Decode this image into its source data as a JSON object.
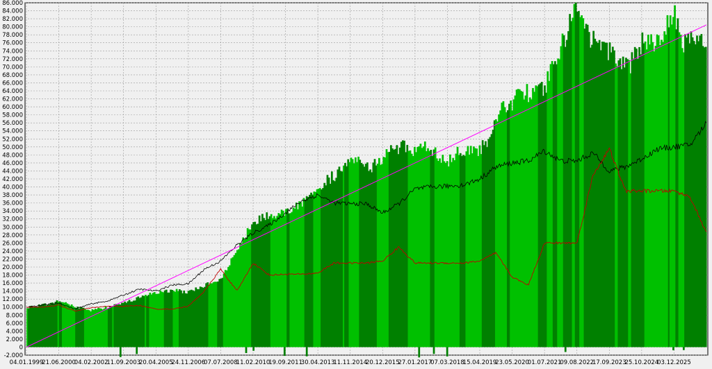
{
  "chart_data": {
    "type": "area",
    "title": "",
    "xlabel": "",
    "ylabel": "",
    "ylim": [
      -2000,
      86000
    ],
    "grid": true,
    "legend": "none",
    "y_ticks": [
      -2000,
      0,
      2000,
      4000,
      6000,
      8000,
      10000,
      12000,
      14000,
      16000,
      18000,
      20000,
      22000,
      24000,
      26000,
      28000,
      30000,
      32000,
      34000,
      36000,
      38000,
      40000,
      42000,
      44000,
      46000,
      48000,
      50000,
      52000,
      54000,
      56000,
      58000,
      60000,
      62000,
      64000,
      66000,
      68000,
      70000,
      72000,
      74000,
      76000,
      78000,
      80000,
      82000,
      84000,
      86000
    ],
    "y_tick_labels": [
      "-2.000",
      "0",
      "2.000",
      "4.000",
      "6.000",
      "8.000",
      "10.000",
      "12.000",
      "14.000",
      "16.000",
      "18.000",
      "20.000",
      "22.000",
      "24.000",
      "26.000",
      "28.000",
      "30.000",
      "32.000",
      "34.000",
      "36.000",
      "38.000",
      "40.000",
      "42.000",
      "44.000",
      "46.000",
      "48.000",
      "50.000",
      "52.000",
      "54.000",
      "56.000",
      "58.000",
      "60.000",
      "62.000",
      "64.000",
      "66.000",
      "68.000",
      "70.000",
      "72.000",
      "74.000",
      "76.000",
      "78.000",
      "80.000",
      "82.000",
      "84.000",
      "86.000"
    ],
    "x_tick_labels": [
      "04.01.1999",
      "21.06.2000",
      "04.02.2002",
      "11.09.2003",
      "20.04.2005",
      "24.11.2006",
      "07.07.2008",
      "11.02.2010",
      "19.09.2011",
      "30.04.2013",
      "11.11.2014",
      "20.12.2015",
      "27.01.2017",
      "07.03.2018",
      "15.04.2019",
      "23.05.2020",
      "01.07.2021",
      "09.08.2022",
      "17.09.2023",
      "25.10.2024",
      "03.12.2025"
    ],
    "colors": {
      "area_light": "#00c000",
      "area_dark": "#008000",
      "equity": "#000000",
      "drawdown": "#c00000",
      "trend": "#ff00ff"
    },
    "series": [
      {
        "role": "equity_area",
        "x": [
          0,
          0.5,
          1,
          1.5,
          2,
          2.5,
          3,
          3.5,
          4,
          4.5,
          5,
          5.5,
          6,
          6.5,
          7,
          7.5,
          8,
          8.5,
          9,
          9.3,
          9.6,
          10,
          10.3,
          10.6,
          11,
          11.3,
          11.6,
          12,
          12.3,
          12.6,
          13,
          13.3,
          13.6,
          14,
          14.3,
          14.6,
          15,
          15.3,
          15.6,
          16,
          16.3,
          16.6,
          17,
          17.3,
          17.6,
          18,
          18.3,
          18.6,
          19,
          19.3,
          19.6,
          20,
          20.3,
          20.6,
          21
        ],
        "y": [
          10000,
          10500,
          11500,
          10200,
          9200,
          10000,
          11000,
          12500,
          13800,
          14200,
          13800,
          15500,
          17000,
          24000,
          31500,
          33000,
          33500,
          36000,
          38500,
          42000,
          43500,
          47500,
          47500,
          45000,
          47500,
          49500,
          50500,
          48500,
          51000,
          49000,
          46000,
          49000,
          49500,
          49500,
          52000,
          60000,
          61500,
          64500,
          63000,
          65000,
          71500,
          77000,
          85500,
          79000,
          75500,
          74000,
          71000,
          70000,
          76500,
          76000,
          78000,
          84000,
          76000,
          77500,
          76000
        ]
      },
      {
        "role": "balance",
        "x": [
          0,
          0.5,
          1,
          1.5,
          2,
          2.5,
          3,
          3.5,
          4,
          4.5,
          5,
          5.5,
          6,
          6.5,
          7,
          7.5,
          8,
          8.5,
          9,
          9.5,
          10,
          10.5,
          11,
          11.5,
          12,
          12.5,
          13,
          13.5,
          14,
          14.5,
          15,
          15.5,
          16,
          16.5,
          17,
          17.5,
          18,
          18.5,
          19,
          19.5,
          20,
          20.5,
          21
        ],
        "y": [
          10000,
          10500,
          11000,
          9500,
          10800,
          11500,
          13000,
          14500,
          14000,
          15500,
          15800,
          19500,
          21500,
          25500,
          28500,
          30500,
          33500,
          36500,
          38000,
          36000,
          35800,
          35800,
          33500,
          35800,
          39500,
          40000,
          40200,
          40500,
          42000,
          45000,
          46000,
          46500,
          49000,
          46500,
          46500,
          48500,
          44000,
          45000,
          47000,
          49500,
          50000,
          50500,
          56000
        ]
      },
      {
        "role": "drawdown_equity",
        "x": [
          0,
          0.5,
          1,
          1.5,
          2,
          2.5,
          3,
          3.5,
          4,
          4.5,
          5,
          5.5,
          6,
          6.5,
          7,
          7.5,
          8,
          8.5,
          9,
          9.5,
          10,
          10.5,
          11,
          11.5,
          12,
          12.5,
          13,
          13.5,
          14,
          14.5,
          15,
          15.5,
          16,
          16.5,
          17,
          17.5,
          18,
          18.5,
          19,
          19.5,
          20,
          20.5,
          21
        ],
        "y": [
          10000,
          10000,
          10500,
          9000,
          9800,
          10200,
          10200,
          10400,
          9500,
          9500,
          10200,
          14000,
          19500,
          14000,
          21000,
          18000,
          18200,
          18200,
          18500,
          21000,
          21000,
          21000,
          21500,
          25000,
          21000,
          21000,
          21000,
          21000,
          21500,
          23500,
          17500,
          15500,
          26000,
          26000,
          26000,
          43000,
          49500,
          39000,
          39000,
          39000,
          39000,
          37500,
          28500
        ]
      },
      {
        "role": "trend",
        "x": [
          0,
          21
        ],
        "y": [
          0,
          80500
        ]
      }
    ]
  }
}
